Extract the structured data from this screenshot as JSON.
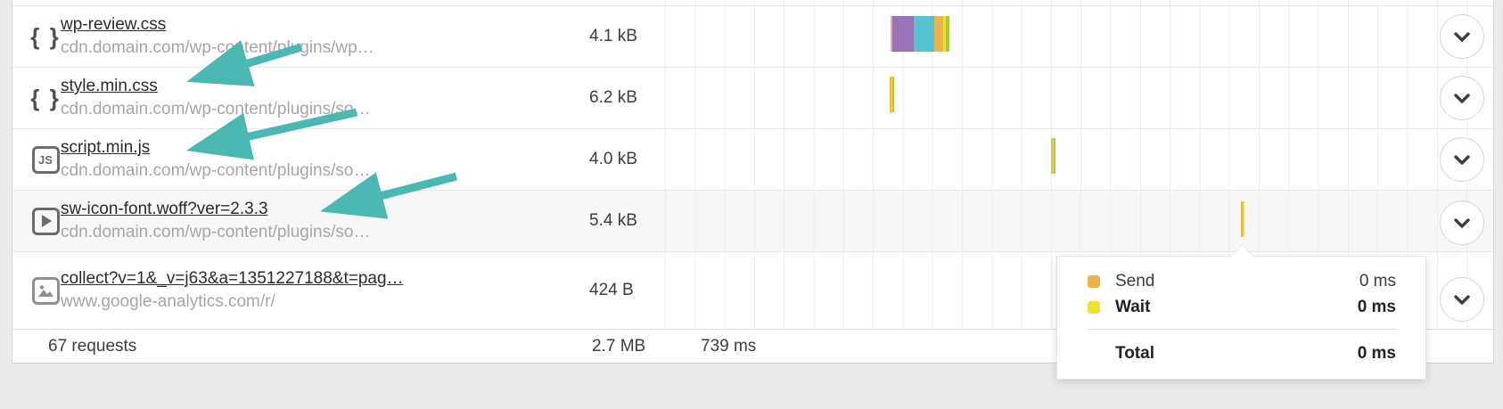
{
  "palette": {
    "dns": "#f0a1c3",
    "ssl": "#9873b7",
    "connect": "#55c4cf",
    "send": "#ecb44e",
    "wait": "#f1df35",
    "receive": "#a5cc3c",
    "arrow": "#4bb8b2"
  },
  "rows": [
    {
      "icon": "css-file-icon",
      "filename": "wp-review.css",
      "url": "cdn.domain.com/wp-content/plugins/wp…",
      "size": "4.1 kB",
      "waterfall": {
        "offset": 253,
        "segments": [
          [
            "dns",
            2
          ],
          [
            "ssl",
            24
          ],
          [
            "connect",
            23
          ],
          [
            "send",
            10
          ],
          [
            "wait",
            3
          ],
          [
            "receive",
            4
          ]
        ]
      }
    },
    {
      "icon": "css-file-icon",
      "filename": "style.min.css",
      "url": "cdn.domain.com/wp-content/plugins/so…",
      "size": "6.2 kB",
      "waterfall": {
        "offset": 252,
        "segments": [
          [
            "send",
            2
          ],
          [
            "wait",
            1
          ],
          [
            "receive",
            2
          ]
        ]
      }
    },
    {
      "icon": "js-file-icon",
      "filename": "script.min.js",
      "url": "cdn.domain.com/wp-content/plugins/so…",
      "size": "4.0 kB",
      "waterfall": {
        "offset": 433,
        "segments": [
          [
            "send",
            2
          ],
          [
            "wait",
            1
          ],
          [
            "receive",
            2
          ]
        ]
      }
    },
    {
      "icon": "media-file-icon",
      "filename": "sw-icon-font.woff?ver=2.3.3",
      "url": "cdn.domain.com/wp-content/plugins/so…",
      "size": "5.4 kB",
      "hovered": true,
      "waterfall": {
        "offset": 646,
        "segments": [
          [
            "send",
            2
          ],
          [
            "wait",
            2
          ]
        ]
      }
    },
    {
      "icon": "image-file-icon",
      "filename": "collect?v=1&_v=j63&a=1351227188&t=pag…",
      "url": "www.google-analytics.com/r/",
      "size": "424 B",
      "waterfall": {
        "offset": 0,
        "segments": []
      }
    }
  ],
  "footer": {
    "requests": "67 requests",
    "total_size": "2.7 MB",
    "total_time": "739 ms"
  },
  "tooltip": {
    "entries": [
      {
        "phase": "send",
        "label": "Send",
        "value": "0 ms",
        "emphasis": false
      },
      {
        "phase": "wait",
        "label": "Wait",
        "value": "0 ms",
        "emphasis": true
      }
    ],
    "total_label": "Total",
    "total_value": "0 ms"
  }
}
